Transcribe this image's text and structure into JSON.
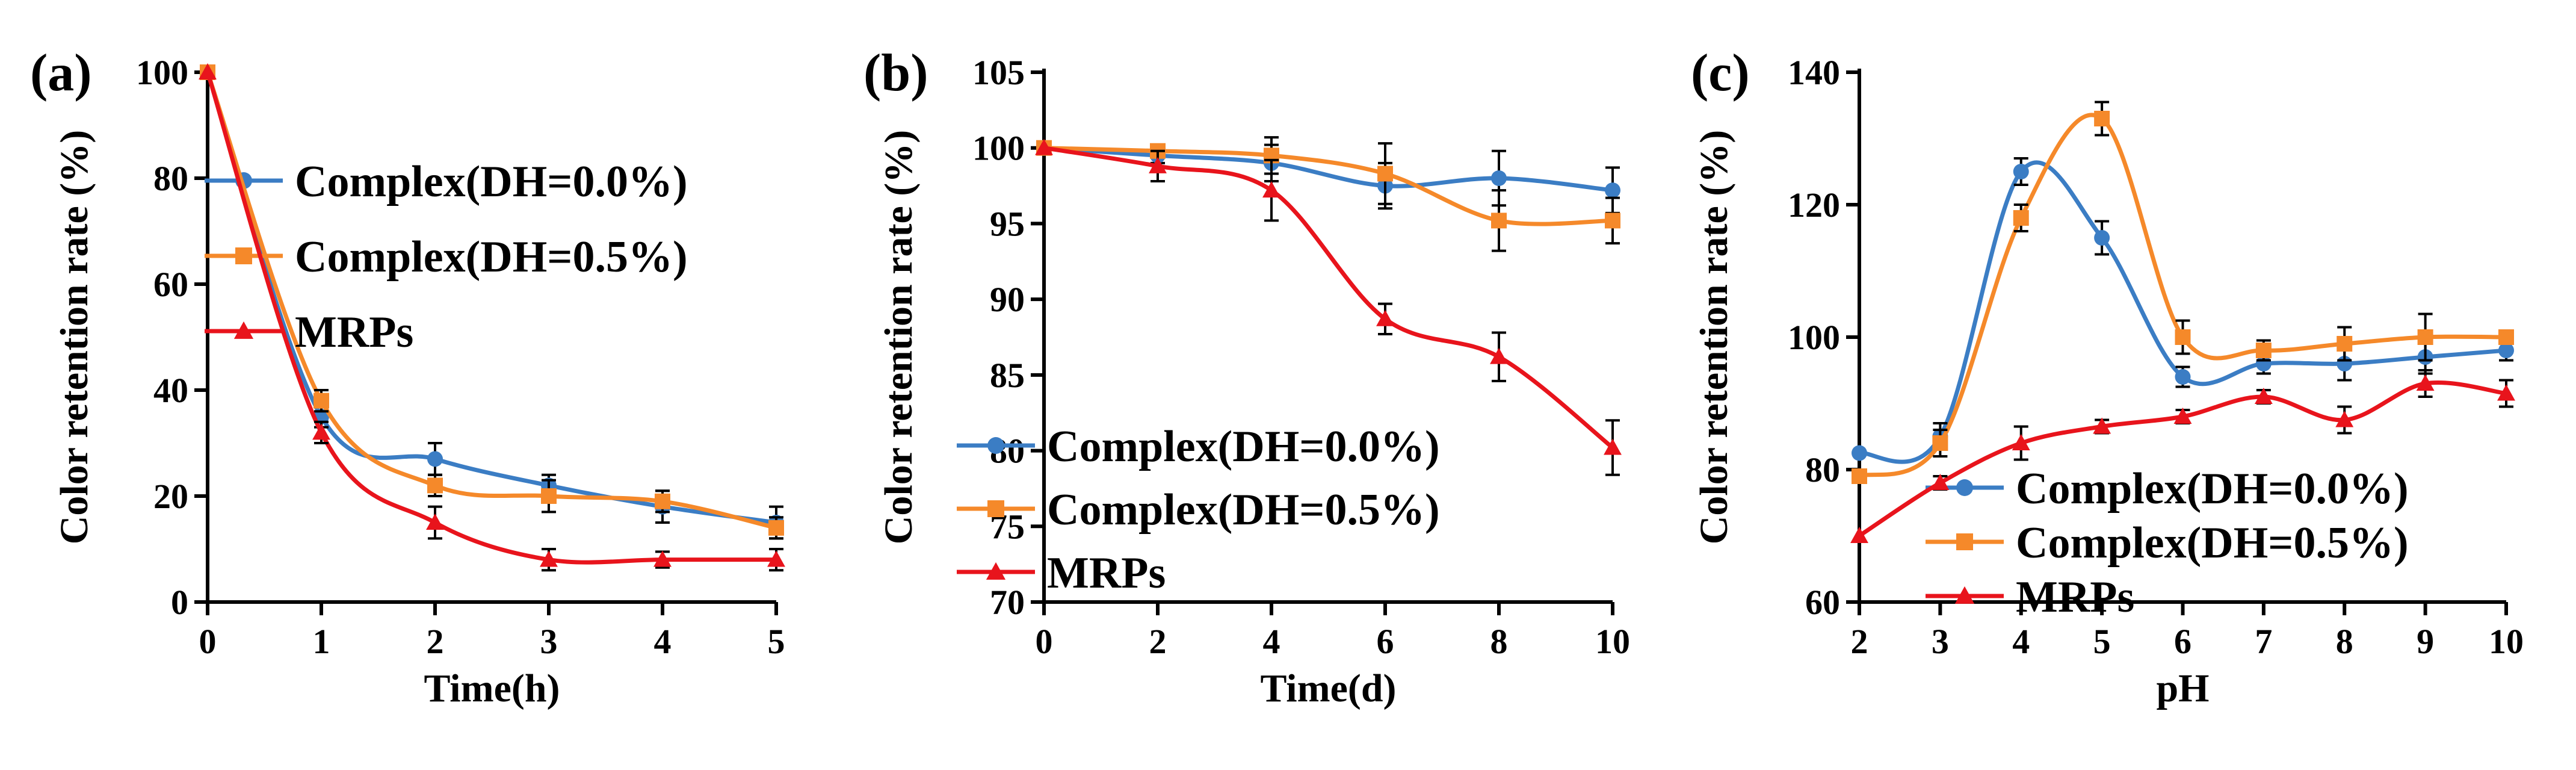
{
  "chart_data": [
    {
      "type": "line",
      "panel_label": "(a)",
      "xlabel": "Time(h)",
      "ylabel": "Color retention rate (%)",
      "xlim": [
        0,
        5
      ],
      "ylim": [
        0,
        100
      ],
      "xticks": [
        0,
        1,
        2,
        3,
        4,
        5
      ],
      "yticks": [
        0,
        20,
        40,
        60,
        80,
        100
      ],
      "legend_position": "top-right",
      "series": [
        {
          "name": "Complex(DH=0.0%)",
          "color": "#3b7dc4",
          "marker": "circle",
          "x": [
            0,
            1,
            2,
            3,
            4,
            5
          ],
          "y": [
            100,
            35,
            27,
            22,
            18,
            15
          ],
          "err": [
            0,
            2,
            3,
            2,
            3,
            3
          ]
        },
        {
          "name": "Complex(DH=0.5%)",
          "color": "#f5892a",
          "marker": "square",
          "x": [
            0,
            1,
            2,
            3,
            4,
            5
          ],
          "y": [
            100,
            38,
            22,
            20,
            19,
            14
          ],
          "err": [
            0,
            2,
            2,
            3,
            2,
            2
          ]
        },
        {
          "name": "MRPs",
          "color": "#e8141c",
          "marker": "triangle",
          "x": [
            0,
            1,
            2,
            3,
            4,
            5
          ],
          "y": [
            100,
            32,
            15,
            8,
            8,
            8
          ],
          "err": [
            0,
            2,
            3,
            2,
            1.5,
            2
          ]
        }
      ]
    },
    {
      "type": "line",
      "panel_label": "(b)",
      "xlabel": "Time(d)",
      "ylabel": "Color retention rate (%)",
      "xlim": [
        0,
        10
      ],
      "ylim": [
        70,
        105
      ],
      "xticks": [
        0,
        2,
        4,
        6,
        8,
        10
      ],
      "yticks": [
        70,
        75,
        80,
        85,
        90,
        95,
        100,
        105
      ],
      "legend_position": "bottom-left",
      "series": [
        {
          "name": "Complex(DH=0.0%)",
          "color": "#3b7dc4",
          "marker": "circle",
          "x": [
            0,
            2,
            4,
            6,
            8,
            10
          ],
          "y": [
            100,
            99.5,
            99,
            97.5,
            98,
            97.2
          ],
          "err": [
            0,
            0.5,
            1.2,
            1.5,
            1.8,
            1.5
          ]
        },
        {
          "name": "Complex(DH=0.5%)",
          "color": "#f5892a",
          "marker": "square",
          "x": [
            0,
            2,
            4,
            6,
            8,
            10
          ],
          "y": [
            100,
            99.8,
            99.5,
            98.3,
            95.2,
            95.2
          ],
          "err": [
            0,
            0.4,
            1.2,
            2.0,
            2.0,
            1.5
          ]
        },
        {
          "name": "MRPs",
          "color": "#e8141c",
          "marker": "triangle",
          "x": [
            0,
            2,
            4,
            6,
            8,
            10
          ],
          "y": [
            100,
            98.8,
            97.2,
            88.7,
            86.2,
            80.2
          ],
          "err": [
            0,
            1.0,
            2.0,
            1.0,
            1.6,
            1.8
          ]
        }
      ]
    },
    {
      "type": "line",
      "panel_label": "(c)",
      "xlabel": "pH",
      "ylabel": "Color retention rate (%)",
      "xlim": [
        2,
        10
      ],
      "ylim": [
        60,
        140
      ],
      "xticks": [
        2,
        3,
        4,
        5,
        6,
        7,
        8,
        9,
        10
      ],
      "yticks": [
        60,
        80,
        100,
        120,
        140
      ],
      "legend_position": "bottom-right",
      "series": [
        {
          "name": "Complex(DH=0.0%)",
          "color": "#3b7dc4",
          "marker": "circle",
          "x": [
            2,
            3,
            4,
            5,
            6,
            7,
            8,
            9,
            10
          ],
          "y": [
            82.5,
            85,
            125,
            115,
            94,
            96,
            96,
            97,
            98
          ],
          "err": [
            0,
            2,
            2,
            2.5,
            1.5,
            1.5,
            2.5,
            2.5,
            1.5
          ]
        },
        {
          "name": "Complex(DH=0.5%)",
          "color": "#f5892a",
          "marker": "square",
          "x": [
            2,
            3,
            4,
            5,
            6,
            7,
            8,
            9,
            10
          ],
          "y": [
            79,
            84,
            118,
            133,
            100,
            98,
            99,
            100,
            100
          ],
          "err": [
            0,
            2,
            2,
            2.5,
            2.5,
            1.5,
            2.5,
            3.5,
            1
          ]
        },
        {
          "name": "MRPs",
          "color": "#e8141c",
          "marker": "triangle",
          "x": [
            2,
            3,
            4,
            5,
            6,
            7,
            8,
            9,
            10
          ],
          "y": [
            70,
            78,
            84,
            86.5,
            88,
            91,
            87.5,
            93,
            91.5
          ],
          "err": [
            0,
            1,
            2.5,
            1,
            1,
            1,
            2,
            2,
            2
          ]
        }
      ]
    }
  ]
}
